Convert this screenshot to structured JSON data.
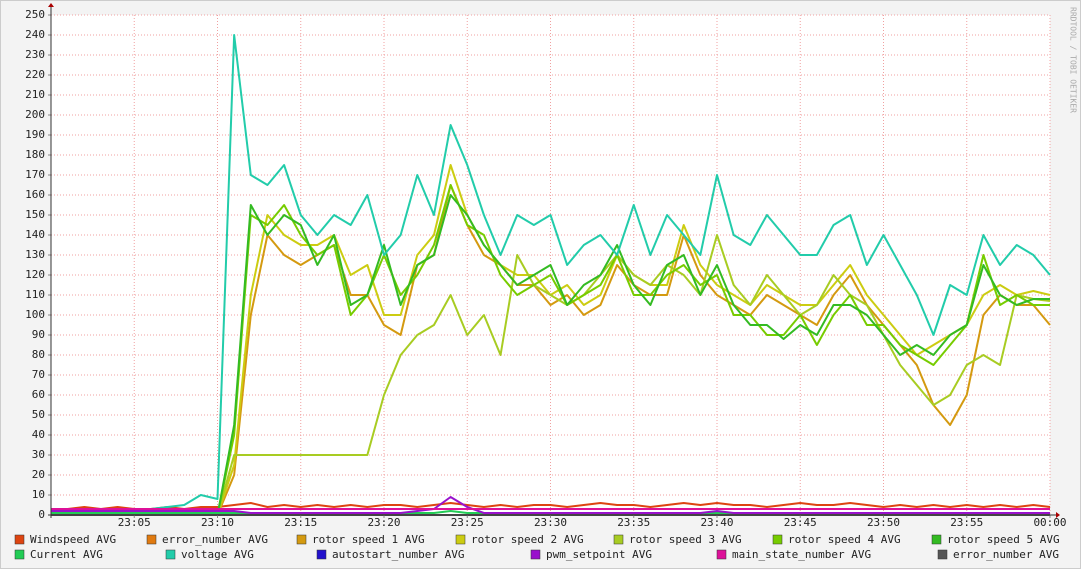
{
  "chart_data": {
    "type": "line",
    "watermark": "RRDTOOL / TOBI OETIKER",
    "x": [
      0,
      1,
      2,
      3,
      4,
      5,
      6,
      7,
      8,
      9,
      10,
      11,
      12,
      13,
      14,
      15,
      16,
      17,
      18,
      19,
      20,
      21,
      22,
      23,
      24,
      25,
      26,
      27,
      28,
      29,
      30,
      31,
      32,
      33,
      34,
      35,
      36,
      37,
      38,
      39,
      40,
      41,
      42,
      43,
      44,
      45,
      46,
      47,
      48,
      49,
      50,
      51,
      52,
      53,
      54,
      55,
      56,
      57,
      58,
      59,
      60
    ],
    "xlim": [
      0,
      60
    ],
    "xticks": [
      {
        "value": 5,
        "label": "23:05"
      },
      {
        "value": 10,
        "label": "23:10"
      },
      {
        "value": 15,
        "label": "23:15"
      },
      {
        "value": 20,
        "label": "23:20"
      },
      {
        "value": 25,
        "label": "23:25"
      },
      {
        "value": 30,
        "label": "23:30"
      },
      {
        "value": 35,
        "label": "23:35"
      },
      {
        "value": 40,
        "label": "23:40"
      },
      {
        "value": 45,
        "label": "23:45"
      },
      {
        "value": 50,
        "label": "23:50"
      },
      {
        "value": 55,
        "label": "23:55"
      },
      {
        "value": 60,
        "label": "00:00"
      }
    ],
    "ylim": [
      0,
      250
    ],
    "yticks": [
      0,
      10,
      20,
      30,
      40,
      50,
      60,
      70,
      80,
      90,
      100,
      110,
      120,
      130,
      140,
      150,
      160,
      170,
      180,
      190,
      200,
      210,
      220,
      230,
      240,
      250
    ],
    "grid": true,
    "series": [
      {
        "name": "Windspeed AVG",
        "color": "#dd4411",
        "values": [
          3,
          3,
          4,
          3,
          4,
          3,
          3,
          4,
          3,
          4,
          4,
          5,
          6,
          4,
          5,
          4,
          5,
          4,
          5,
          4,
          5,
          5,
          4,
          5,
          6,
          5,
          4,
          5,
          4,
          5,
          5,
          4,
          5,
          6,
          5,
          5,
          4,
          5,
          6,
          5,
          6,
          5,
          5,
          4,
          5,
          6,
          5,
          5,
          6,
          5,
          4,
          5,
          4,
          5,
          4,
          5,
          4,
          5,
          4,
          5,
          4
        ]
      },
      {
        "name": "error_number AVG",
        "color": "#e07a10",
        "values": [
          0,
          0,
          0,
          0,
          0,
          0,
          0,
          0,
          0,
          0,
          0,
          0,
          0,
          0,
          0,
          0,
          0,
          0,
          0,
          0,
          0,
          0,
          0,
          0,
          0,
          0,
          0,
          0,
          0,
          0,
          0,
          0,
          0,
          0,
          0,
          0,
          0,
          0,
          0,
          0,
          0,
          0,
          0,
          0,
          0,
          0,
          0,
          0,
          0,
          0,
          0,
          0,
          0,
          0,
          0,
          0,
          0,
          0,
          0,
          0,
          0
        ]
      },
      {
        "name": "rotor speed 1 AVG",
        "color": "#d49a10",
        "values": [
          0,
          0,
          0,
          0,
          0,
          0,
          0,
          0,
          0,
          0,
          0,
          20,
          100,
          140,
          130,
          125,
          130,
          135,
          110,
          110,
          95,
          90,
          125,
          130,
          165,
          145,
          130,
          125,
          115,
          115,
          105,
          110,
          100,
          105,
          125,
          115,
          110,
          110,
          140,
          120,
          110,
          105,
          100,
          110,
          105,
          100,
          95,
          110,
          120,
          105,
          95,
          85,
          75,
          55,
          45,
          60,
          100,
          110,
          105,
          105,
          95
        ]
      },
      {
        "name": "rotor speed 2 AVG",
        "color": "#cccc11",
        "values": [
          0,
          0,
          0,
          0,
          0,
          0,
          0,
          0,
          0,
          0,
          0,
          25,
          110,
          150,
          140,
          135,
          135,
          140,
          120,
          125,
          100,
          100,
          130,
          140,
          175,
          150,
          135,
          125,
          120,
          120,
          110,
          115,
          105,
          110,
          130,
          120,
          115,
          115,
          145,
          125,
          115,
          110,
          105,
          115,
          110,
          105,
          105,
          115,
          125,
          110,
          100,
          90,
          80,
          85,
          90,
          95,
          110,
          115,
          110,
          112,
          110
        ]
      },
      {
        "name": "rotor speed 3 AVG",
        "color": "#a8cc22",
        "values": [
          0,
          0,
          0,
          0,
          0,
          0,
          0,
          0,
          0,
          0,
          0,
          30,
          30,
          30,
          30,
          30,
          30,
          30,
          30,
          30,
          60,
          80,
          90,
          95,
          110,
          90,
          100,
          80,
          130,
          115,
          110,
          105,
          110,
          120,
          130,
          120,
          115,
          125,
          120,
          110,
          140,
          115,
          105,
          120,
          110,
          100,
          105,
          120,
          110,
          105,
          90,
          75,
          65,
          55,
          60,
          75,
          80,
          75,
          110,
          108,
          107
        ]
      },
      {
        "name": "rotor speed 4 AVG",
        "color": "#77cc00",
        "values": [
          0,
          0,
          0,
          0,
          0,
          0,
          0,
          0,
          0,
          0,
          0,
          40,
          150,
          145,
          155,
          140,
          130,
          135,
          100,
          110,
          130,
          110,
          120,
          135,
          165,
          145,
          140,
          120,
          110,
          115,
          120,
          105,
          110,
          115,
          130,
          110,
          110,
          120,
          125,
          115,
          120,
          100,
          100,
          90,
          90,
          100,
          85,
          100,
          110,
          95,
          95,
          85,
          80,
          75,
          85,
          95,
          130,
          105,
          110,
          105,
          105
        ]
      },
      {
        "name": "rotor speed 5 AVG",
        "color": "#33bb22",
        "values": [
          0,
          0,
          0,
          0,
          0,
          0,
          0,
          0,
          0,
          0,
          0,
          45,
          155,
          140,
          150,
          145,
          125,
          140,
          105,
          110,
          135,
          105,
          125,
          130,
          160,
          150,
          135,
          125,
          115,
          120,
          125,
          105,
          115,
          120,
          135,
          115,
          105,
          125,
          130,
          110,
          125,
          105,
          95,
          95,
          88,
          95,
          90,
          105,
          105,
          100,
          90,
          80,
          85,
          80,
          90,
          95,
          125,
          110,
          105,
          108,
          108
        ]
      },
      {
        "name": "Current AVG",
        "color": "#22cc55",
        "values": [
          1,
          1,
          1,
          1,
          1,
          1,
          1,
          1,
          1,
          1,
          1,
          1,
          1,
          1,
          1,
          1,
          1,
          1,
          1,
          1,
          1,
          1,
          1,
          1,
          2,
          1,
          1,
          1,
          1,
          1,
          1,
          1,
          1,
          1,
          1,
          1,
          1,
          1,
          1,
          1,
          1,
          1,
          1,
          1,
          1,
          1,
          1,
          1,
          1,
          1,
          1,
          1,
          1,
          1,
          1,
          1,
          1,
          1,
          1,
          1,
          1
        ]
      },
      {
        "name": "voltage AVG",
        "color": "#22ccaa",
        "values": [
          3,
          3,
          3,
          3,
          3,
          3,
          3,
          4,
          5,
          10,
          8,
          240,
          170,
          165,
          175,
          150,
          140,
          150,
          145,
          160,
          130,
          140,
          170,
          150,
          195,
          175,
          150,
          130,
          150,
          145,
          150,
          125,
          135,
          140,
          130,
          155,
          130,
          150,
          140,
          130,
          170,
          140,
          135,
          150,
          140,
          130,
          130,
          145,
          150,
          125,
          140,
          125,
          110,
          90,
          115,
          110,
          140,
          125,
          135,
          130,
          120
        ]
      },
      {
        "name": "autostart_number AVG",
        "color": "#2211cc",
        "values": [
          0,
          0,
          0,
          0,
          0,
          0,
          0,
          0,
          0,
          0,
          0,
          0,
          0,
          0,
          0,
          0,
          0,
          0,
          0,
          0,
          0,
          0,
          0,
          0,
          0,
          0,
          0,
          0,
          0,
          0,
          0,
          0,
          0,
          0,
          0,
          0,
          0,
          0,
          0,
          0,
          0,
          0,
          0,
          0,
          0,
          0,
          0,
          0,
          0,
          0,
          0,
          0,
          0,
          0,
          0,
          0,
          0,
          0,
          0,
          0,
          0
        ]
      },
      {
        "name": "pwm_setpoint AVG",
        "color": "#9911cc",
        "values": [
          2,
          2,
          2,
          2,
          2,
          2,
          2,
          2,
          2,
          2,
          2,
          2,
          1,
          1,
          1,
          1,
          1,
          1,
          1,
          1,
          1,
          1,
          2,
          3,
          9,
          4,
          1,
          1,
          1,
          1,
          1,
          1,
          1,
          1,
          1,
          1,
          1,
          1,
          1,
          1,
          2,
          1,
          1,
          1,
          1,
          1,
          1,
          1,
          1,
          1,
          1,
          1,
          1,
          1,
          1,
          1,
          1,
          1,
          1,
          1,
          1
        ]
      },
      {
        "name": "main_state_number AVG",
        "color": "#dd1199",
        "values": [
          3,
          3,
          3,
          3,
          3,
          3,
          3,
          3,
          3,
          3,
          3,
          3,
          3,
          3,
          3,
          3,
          3,
          3,
          3,
          3,
          3,
          3,
          3,
          3,
          3,
          3,
          3,
          3,
          3,
          3,
          3,
          3,
          3,
          3,
          3,
          3,
          3,
          3,
          3,
          3,
          3,
          3,
          3,
          3,
          3,
          3,
          3,
          3,
          3,
          3,
          3,
          3,
          3,
          3,
          3,
          3,
          3,
          3,
          3,
          3,
          3
        ]
      },
      {
        "name": "error_number AVG",
        "color": "#555555",
        "values": [
          0,
          0,
          0,
          0,
          0,
          0,
          0,
          0,
          0,
          0,
          0,
          0,
          0,
          0,
          0,
          0,
          0,
          0,
          0,
          0,
          0,
          0,
          0,
          0,
          0,
          0,
          0,
          0,
          0,
          0,
          0,
          0,
          0,
          0,
          0,
          0,
          0,
          0,
          0,
          0,
          0,
          0,
          0,
          0,
          0,
          0,
          0,
          0,
          0,
          0,
          0,
          0,
          0,
          0,
          0,
          0,
          0,
          0,
          0,
          0,
          0
        ]
      }
    ]
  }
}
